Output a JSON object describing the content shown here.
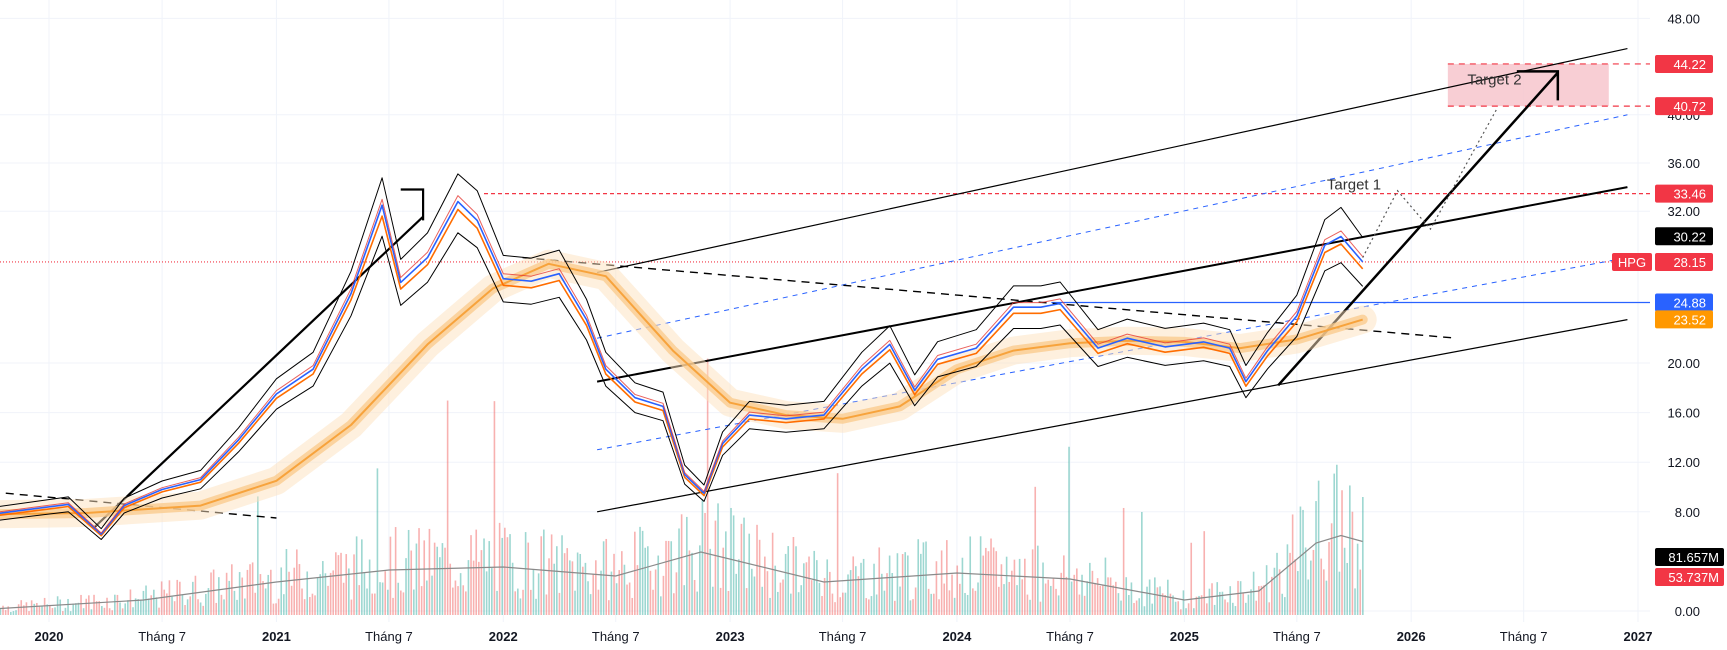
{
  "chart_data": {
    "type": "line",
    "title": "",
    "xlabel": "",
    "ylabel": "",
    "ylim": [
      0,
      48
    ],
    "xlim": [
      "2019-10-01",
      "2027-01-01"
    ],
    "grid": true,
    "y_ticks": [
      "48.00",
      "40.00",
      "36.00",
      "32.00",
      "20.00",
      "16.00",
      "12.00",
      "8.00",
      "0.00"
    ],
    "x_ticks": [
      {
        "date": "2020-01-01",
        "label": "2020",
        "year": true
      },
      {
        "date": "2020-07-01",
        "label": "Tháng 7",
        "year": false
      },
      {
        "date": "2021-01-01",
        "label": "2021",
        "year": true
      },
      {
        "date": "2021-07-01",
        "label": "Tháng 7",
        "year": false
      },
      {
        "date": "2022-01-01",
        "label": "2022",
        "year": true
      },
      {
        "date": "2022-07-01",
        "label": "Tháng 7",
        "year": false
      },
      {
        "date": "2023-01-01",
        "label": "2023",
        "year": true
      },
      {
        "date": "2023-07-01",
        "label": "Tháng 7",
        "year": false
      },
      {
        "date": "2024-01-01",
        "label": "2024",
        "year": true
      },
      {
        "date": "2024-07-01",
        "label": "Tháng 7",
        "year": false
      },
      {
        "date": "2025-01-01",
        "label": "2025",
        "year": true
      },
      {
        "date": "2025-07-01",
        "label": "Tháng 7",
        "year": false
      },
      {
        "date": "2026-01-01",
        "label": "2026",
        "year": true
      },
      {
        "date": "2026-07-01",
        "label": "Tháng 7",
        "year": false
      },
      {
        "date": "2027-01-01",
        "label": "2027",
        "year": true
      }
    ],
    "series": [
      {
        "name": "HPG",
        "color": "#2962ff",
        "x": [
          "2019-10-01",
          "2019-12-01",
          "2020-02-01",
          "2020-03-25",
          "2020-05-01",
          "2020-07-01",
          "2020-09-01",
          "2020-11-01",
          "2021-01-01",
          "2021-03-01",
          "2021-05-01",
          "2021-06-20",
          "2021-07-20",
          "2021-09-01",
          "2021-10-20",
          "2021-11-20",
          "2022-01-01",
          "2022-02-15",
          "2022-04-01",
          "2022-05-15",
          "2022-06-15",
          "2022-08-01",
          "2022-09-15",
          "2022-10-20",
          "2022-11-20",
          "2022-12-20",
          "2023-02-01",
          "2023-04-01",
          "2023-06-01",
          "2023-08-01",
          "2023-09-15",
          "2023-10-25",
          "2023-12-01",
          "2024-02-01",
          "2024-04-01",
          "2024-05-15",
          "2024-06-15",
          "2024-08-15",
          "2024-10-01",
          "2024-12-01",
          "2025-02-01",
          "2025-03-15",
          "2025-04-10",
          "2025-05-15",
          "2025-07-01",
          "2025-08-15",
          "2025-09-10",
          "2025-10-15"
        ],
        "values": [
          7.8,
          8.2,
          8.6,
          6.2,
          8.5,
          9.8,
          10.6,
          13.8,
          17.5,
          19.5,
          25.6,
          32.5,
          26.5,
          28.5,
          32.8,
          31.5,
          26.8,
          26.6,
          27.2,
          23.5,
          19.5,
          17.2,
          16.5,
          11.0,
          9.5,
          13.5,
          15.8,
          15.5,
          15.8,
          19.5,
          21.5,
          17.8,
          20.3,
          21.2,
          24.5,
          24.5,
          24.8,
          21.2,
          22.0,
          21.3,
          21.7,
          21.2,
          18.5,
          21.0,
          23.8,
          29.5,
          30.2,
          28.15
        ]
      },
      {
        "name": "MA",
        "color": "#f7a33c",
        "x": [
          "2019-10-01",
          "2020-03-01",
          "2020-09-01",
          "2021-01-01",
          "2021-05-01",
          "2021-09-01",
          "2021-12-15",
          "2022-03-15",
          "2022-06-15",
          "2022-10-01",
          "2023-01-01",
          "2023-04-01",
          "2023-07-01",
          "2023-10-01",
          "2024-01-01",
          "2024-04-01",
          "2024-07-01",
          "2024-10-01",
          "2025-01-01",
          "2025-04-01",
          "2025-07-01",
          "2025-10-15"
        ],
        "values": [
          7.8,
          7.9,
          8.5,
          10.5,
          15.0,
          21.5,
          26.0,
          28.0,
          27.0,
          21.0,
          16.8,
          15.8,
          15.5,
          16.5,
          19.5,
          21.0,
          21.6,
          21.8,
          21.7,
          21.2,
          21.9,
          23.5
        ]
      },
      {
        "name": "Volume",
        "color": "#8a8a8a",
        "x": [
          "2019-10-01",
          "2020-06-01",
          "2021-01-01",
          "2021-07-01",
          "2022-01-01",
          "2022-07-01",
          "2022-11-15",
          "2023-06-01",
          "2024-01-01",
          "2024-07-01",
          "2025-01-01",
          "2025-05-01",
          "2025-08-01",
          "2025-09-10",
          "2025-10-15"
        ],
        "values": [
          0.4,
          1.0,
          2.2,
          3.0,
          3.2,
          2.6,
          4.2,
          2.2,
          2.8,
          2.4,
          1.0,
          1.6,
          4.8,
          5.3,
          4.9
        ]
      }
    ],
    "price_labels": [
      {
        "value": 44.22,
        "label": "44.22",
        "color": "#f23645"
      },
      {
        "value": 40.72,
        "label": "40.72",
        "color": "#f23645"
      },
      {
        "value": 33.46,
        "label": "33.46",
        "color": "#f23645"
      },
      {
        "value": 30.22,
        "label": "30.22",
        "color": "#000000"
      },
      {
        "value": 28.15,
        "label": "28.15",
        "color": "#f23645",
        "tag": "HPG"
      },
      {
        "value": 24.88,
        "label": "24.88",
        "color": "#2962ff"
      },
      {
        "value": 23.52,
        "label": "23.52",
        "color": "#ff9800"
      }
    ],
    "volume_labels": [
      {
        "label": "81.657M",
        "color": "#000000"
      },
      {
        "label": "53.737M",
        "color": "#f23645"
      }
    ],
    "annotations": [
      {
        "text": "Target 1",
        "x": "2025-10-01",
        "y": 33.8
      },
      {
        "text": "Target 2",
        "x": "2026-05-15",
        "y": 42.5
      }
    ],
    "target_zone": {
      "x0": "2026-03-01",
      "x1": "2026-11-15",
      "y0": 40.72,
      "y1": 44.22,
      "color": "#f7c6cc"
    }
  }
}
